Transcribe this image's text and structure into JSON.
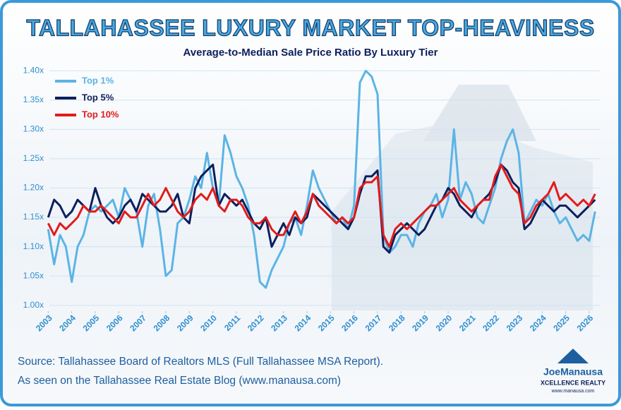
{
  "chart_data": {
    "type": "line",
    "title": "TALLAHASSEE LUXURY MARKET TOP-HEAVINESS",
    "subtitle": "Average-to-Median Sale Price Ratio By Luxury Tier",
    "source": [
      "Source: Tallahassee Board of Realtors MLS (Full Tallahassee MSA Report).",
      "As seen on the Tallahassee Real Estate Blog (www.manausa.com)"
    ],
    "logo": [
      "JoeManausa",
      "XCELLENCE REALTY",
      "www.manausa.com"
    ],
    "x": [
      2003,
      2003.25,
      2003.5,
      2003.75,
      2004,
      2004.25,
      2004.5,
      2004.75,
      2005,
      2005.25,
      2005.5,
      2005.75,
      2006,
      2006.25,
      2006.5,
      2006.75,
      2007,
      2007.25,
      2007.5,
      2007.75,
      2008,
      2008.25,
      2008.5,
      2008.75,
      2009,
      2009.25,
      2009.5,
      2009.75,
      2010,
      2010.25,
      2010.5,
      2010.75,
      2011,
      2011.25,
      2011.5,
      2011.75,
      2012,
      2012.25,
      2012.5,
      2012.75,
      2013,
      2013.25,
      2013.5,
      2013.75,
      2014,
      2014.25,
      2014.5,
      2014.75,
      2015,
      2015.25,
      2015.5,
      2015.75,
      2016,
      2016.25,
      2016.5,
      2016.75,
      2017,
      2017.25,
      2017.5,
      2017.75,
      2018,
      2018.25,
      2018.5,
      2018.75,
      2019,
      2019.25,
      2019.5,
      2019.75,
      2020,
      2020.25,
      2020.5,
      2020.75,
      2021,
      2021.25,
      2021.5,
      2021.75,
      2022,
      2022.25,
      2022.5,
      2022.75,
      2023,
      2023.25,
      2023.5,
      2023.75,
      2024,
      2024.25,
      2024.5,
      2024.75,
      2025,
      2025.25,
      2025.5,
      2025.75,
      2026,
      2026.25
    ],
    "series": [
      {
        "name": "Top 1%",
        "color": "#5bb4e5",
        "values": [
          1.13,
          1.07,
          1.12,
          1.1,
          1.04,
          1.1,
          1.12,
          1.16,
          1.17,
          1.16,
          1.17,
          1.18,
          1.15,
          1.2,
          1.18,
          1.16,
          1.1,
          1.17,
          1.19,
          1.13,
          1.05,
          1.06,
          1.14,
          1.15,
          1.18,
          1.22,
          1.2,
          1.26,
          1.2,
          1.17,
          1.29,
          1.26,
          1.22,
          1.2,
          1.17,
          1.12,
          1.04,
          1.03,
          1.06,
          1.08,
          1.1,
          1.14,
          1.15,
          1.12,
          1.17,
          1.23,
          1.2,
          1.18,
          1.16,
          1.14,
          1.15,
          1.13,
          1.17,
          1.38,
          1.4,
          1.39,
          1.36,
          1.12,
          1.09,
          1.1,
          1.12,
          1.12,
          1.1,
          1.14,
          1.16,
          1.17,
          1.19,
          1.15,
          1.18,
          1.3,
          1.18,
          1.21,
          1.19,
          1.15,
          1.14,
          1.17,
          1.2,
          1.25,
          1.28,
          1.3,
          1.26,
          1.14,
          1.16,
          1.18,
          1.17,
          1.19,
          1.16,
          1.14,
          1.15,
          1.13,
          1.11,
          1.12,
          1.11,
          1.16
        ]
      },
      {
        "name": "Top 5%",
        "color": "#0d1f5c",
        "values": [
          1.15,
          1.18,
          1.17,
          1.15,
          1.16,
          1.18,
          1.17,
          1.16,
          1.2,
          1.17,
          1.15,
          1.14,
          1.15,
          1.17,
          1.18,
          1.16,
          1.19,
          1.18,
          1.17,
          1.16,
          1.16,
          1.17,
          1.19,
          1.15,
          1.14,
          1.2,
          1.22,
          1.23,
          1.24,
          1.17,
          1.19,
          1.18,
          1.17,
          1.18,
          1.16,
          1.14,
          1.13,
          1.15,
          1.1,
          1.12,
          1.14,
          1.12,
          1.15,
          1.14,
          1.15,
          1.19,
          1.18,
          1.17,
          1.16,
          1.15,
          1.14,
          1.13,
          1.15,
          1.19,
          1.22,
          1.22,
          1.23,
          1.1,
          1.09,
          1.12,
          1.13,
          1.14,
          1.13,
          1.12,
          1.13,
          1.15,
          1.17,
          1.18,
          1.2,
          1.19,
          1.17,
          1.16,
          1.15,
          1.17,
          1.18,
          1.19,
          1.21,
          1.24,
          1.23,
          1.21,
          1.2,
          1.13,
          1.14,
          1.16,
          1.18,
          1.17,
          1.16,
          1.17,
          1.17,
          1.16,
          1.15,
          1.16,
          1.17,
          1.18
        ]
      },
      {
        "name": "Top 10%",
        "color": "#e31b1b",
        "values": [
          1.14,
          1.12,
          1.14,
          1.13,
          1.14,
          1.15,
          1.17,
          1.16,
          1.16,
          1.17,
          1.16,
          1.15,
          1.14,
          1.16,
          1.15,
          1.15,
          1.17,
          1.19,
          1.17,
          1.18,
          1.2,
          1.18,
          1.16,
          1.15,
          1.16,
          1.18,
          1.19,
          1.18,
          1.2,
          1.17,
          1.16,
          1.18,
          1.18,
          1.17,
          1.15,
          1.14,
          1.14,
          1.15,
          1.13,
          1.12,
          1.12,
          1.14,
          1.16,
          1.14,
          1.16,
          1.19,
          1.17,
          1.16,
          1.15,
          1.14,
          1.15,
          1.14,
          1.15,
          1.2,
          1.21,
          1.21,
          1.22,
          1.12,
          1.1,
          1.13,
          1.14,
          1.13,
          1.14,
          1.15,
          1.16,
          1.17,
          1.17,
          1.18,
          1.19,
          1.2,
          1.18,
          1.17,
          1.16,
          1.17,
          1.18,
          1.18,
          1.22,
          1.24,
          1.22,
          1.2,
          1.19,
          1.14,
          1.15,
          1.17,
          1.18,
          1.19,
          1.21,
          1.18,
          1.19,
          1.18,
          1.17,
          1.18,
          1.17,
          1.19
        ]
      }
    ],
    "xlim": [
      2002.9,
      2026.45
    ],
    "xticks": [
      2003,
      2004,
      2005,
      2006,
      2007,
      2008,
      2009,
      2010,
      2011,
      2012,
      2013,
      2014,
      2015,
      2016,
      2017,
      2018,
      2019,
      2020,
      2021,
      2022,
      2023,
      2024,
      2025,
      2026
    ],
    "ylim": [
      0.99,
      1.41
    ],
    "yticks": [
      {
        "value": 1.0,
        "label": "1.00x"
      },
      {
        "value": 1.05,
        "label": "1.05x"
      },
      {
        "value": 1.1,
        "label": "1.10x"
      },
      {
        "value": 1.15,
        "label": "1.15x"
      },
      {
        "value": 1.2,
        "label": "1.20x"
      },
      {
        "value": 1.25,
        "label": "1.25x"
      },
      {
        "value": 1.3,
        "label": "1.30x"
      },
      {
        "value": 1.35,
        "label": "1.35x"
      },
      {
        "value": 1.4,
        "label": "1.40x"
      }
    ],
    "grid": true,
    "legend": "top-left"
  }
}
